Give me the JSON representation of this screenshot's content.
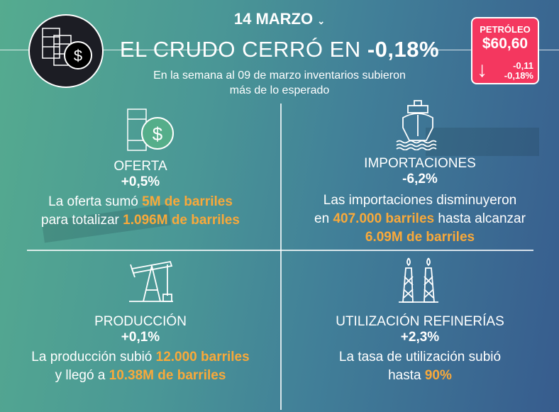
{
  "header": {
    "date": "14 MARZO",
    "title_prefix": "EL CRUDO CERRÓ EN ",
    "title_value": "-0,18%",
    "subtitle_line1": "En la semana al 09 de marzo inventarios subieron",
    "subtitle_line2": "más de lo esperado"
  },
  "badge": {
    "label": "PETRÓLEO",
    "price": "$60,60",
    "change": "-0,11",
    "change_pct": "-0,18%",
    "color": "#f4375f",
    "direction": "down"
  },
  "accent_color": "#f9a93a",
  "sections": [
    {
      "label": "OFERTA",
      "pct": "+0,5%",
      "t1": "La oferta sumó ",
      "h1": "5M de barriles",
      "t2": "para totalizar ",
      "h2": "1.096M de barriles",
      "icon": "barrel-dollar-icon"
    },
    {
      "label": "IMPORTACIONES",
      "pct": "-6,2%",
      "t1": "Las importaciones disminuyeron",
      "t2": "en ",
      "h2": "407.000 barriles",
      "t3": " hasta alcanzar",
      "h3": "6.09M de barriles",
      "icon": "ship-icon"
    },
    {
      "label": "PRODUCCIÓN",
      "pct": "+0,1%",
      "t1": "La producción subió ",
      "h1": "12.000 barriles",
      "t2": "y llegó a ",
      "h2": "10.38M de barriles",
      "icon": "pumpjack-icon"
    },
    {
      "label": "UTILIZACIÓN REFINERÍAS",
      "pct": "+2,3%",
      "t1": "La tasa de utilización subió",
      "t2": "hasta ",
      "h2": "90%",
      "icon": "refinery-icon"
    }
  ]
}
